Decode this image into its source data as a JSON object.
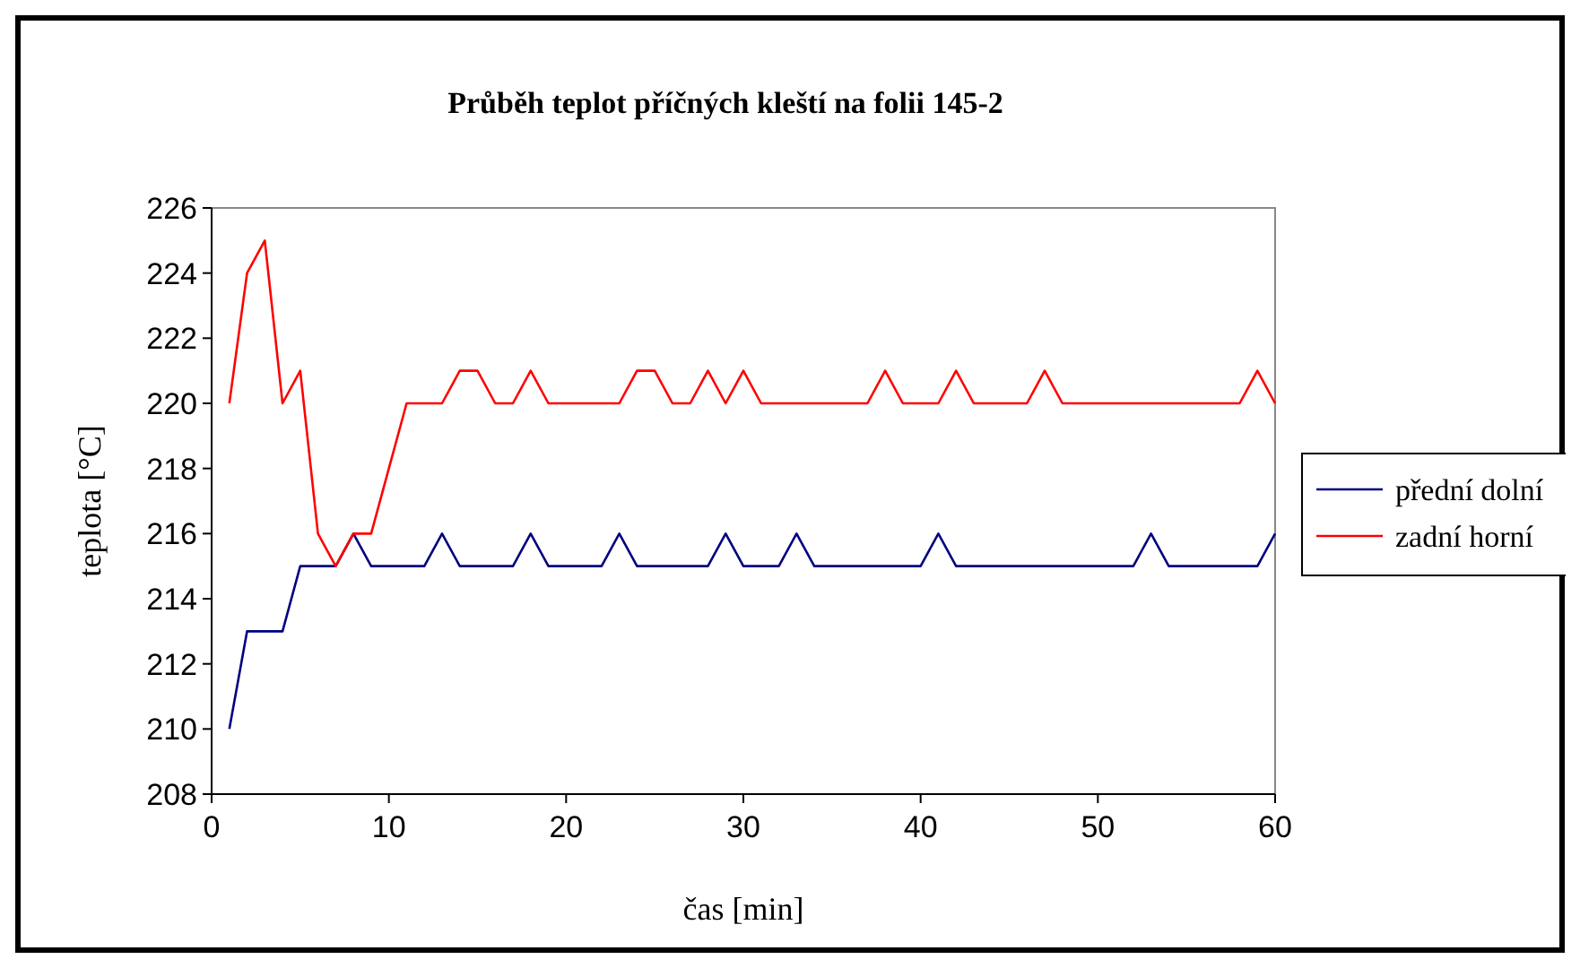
{
  "chart_data": {
    "type": "line",
    "title": "Průběh teplot příčných kleští na folii 145-2",
    "xlabel": "čas [min]",
    "ylabel": "teplota [°C]",
    "x": [
      1,
      2,
      3,
      4,
      5,
      6,
      7,
      8,
      9,
      10,
      11,
      12,
      13,
      14,
      15,
      16,
      17,
      18,
      19,
      20,
      21,
      22,
      23,
      24,
      25,
      26,
      27,
      28,
      29,
      30,
      31,
      32,
      33,
      34,
      35,
      36,
      37,
      38,
      39,
      40,
      41,
      42,
      43,
      44,
      45,
      46,
      47,
      48,
      49,
      50,
      51,
      52,
      53,
      54,
      55,
      56,
      57,
      58,
      59,
      60
    ],
    "series": [
      {
        "name": "přední dolní",
        "color": "#000080",
        "values": [
          210,
          213,
          213,
          213,
          215,
          215,
          215,
          216,
          215,
          215,
          215,
          215,
          216,
          215,
          215,
          215,
          215,
          216,
          215,
          215,
          215,
          215,
          216,
          215,
          215,
          215,
          215,
          215,
          216,
          215,
          215,
          215,
          216,
          215,
          215,
          215,
          215,
          215,
          215,
          215,
          216,
          215,
          215,
          215,
          215,
          215,
          215,
          215,
          215,
          215,
          215,
          215,
          216,
          215,
          215,
          215,
          215,
          215,
          215,
          216
        ]
      },
      {
        "name": "zadní horní",
        "color": "#ff0000",
        "values": [
          220,
          224,
          225,
          220,
          221,
          216,
          215,
          216,
          216,
          218,
          220,
          220,
          220,
          221,
          221,
          220,
          220,
          221,
          220,
          220,
          220,
          220,
          220,
          221,
          221,
          220,
          220,
          221,
          220,
          221,
          220,
          220,
          220,
          220,
          220,
          220,
          220,
          221,
          220,
          220,
          220,
          221,
          220,
          220,
          220,
          220,
          221,
          220,
          220,
          220,
          220,
          220,
          220,
          220,
          220,
          220,
          220,
          220,
          221,
          220
        ]
      }
    ],
    "xlim": [
      0,
      60
    ],
    "xticks": [
      0,
      10,
      20,
      30,
      40,
      50,
      60
    ],
    "ylim": [
      208,
      226
    ],
    "yticks": [
      208,
      210,
      212,
      214,
      216,
      218,
      220,
      222,
      224,
      226
    ],
    "grid": false,
    "legend": "right",
    "marker": "none",
    "line_style": "solid"
  }
}
